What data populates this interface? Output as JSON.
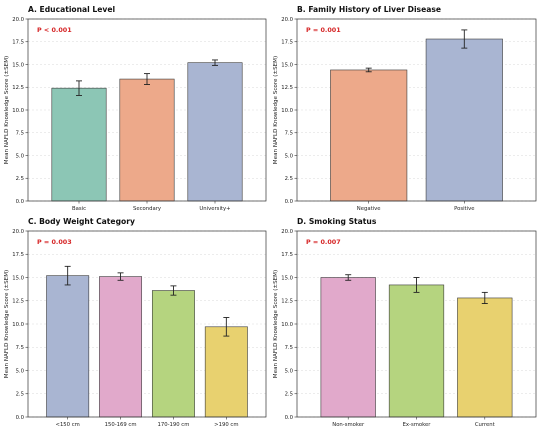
{
  "chart_data": [
    {
      "type": "bar",
      "title": "A. Educational Level",
      "annotation": "P < 0.001",
      "ylabel": "Mean NAFLD Knowledge Score (±SEM)",
      "ylim": [
        0,
        20
      ],
      "yticks": [
        "0.0",
        "2.5",
        "5.0",
        "7.5",
        "10.0",
        "12.5",
        "15.0",
        "17.5",
        "20.0"
      ],
      "categories": [
        "Basic",
        "Secondary",
        "University+"
      ],
      "values": [
        12.4,
        13.4,
        15.2
      ],
      "errors": [
        0.8,
        0.6,
        0.3
      ],
      "colors": [
        "#8cc6b5",
        "#eda98a",
        "#a9b5d2"
      ]
    },
    {
      "type": "bar",
      "title": "B. Family History of Liver Disease",
      "annotation": "P = 0.001",
      "ylabel": "Mean NAFLD Knowledge Score (±SEM)",
      "ylim": [
        0,
        20
      ],
      "yticks": [
        "0.0",
        "2.5",
        "5.0",
        "7.5",
        "10.0",
        "12.5",
        "15.0",
        "17.5",
        "20.0"
      ],
      "categories": [
        "Negative",
        "Positive"
      ],
      "values": [
        14.4,
        17.8
      ],
      "errors": [
        0.2,
        1.0
      ],
      "colors": [
        "#eda98a",
        "#a9b5d2"
      ]
    },
    {
      "type": "bar",
      "title": "C. Body Weight Category",
      "annotation": "P = 0.003",
      "ylabel": "Mean NAFLD Knowledge Score (±SEM)",
      "ylim": [
        0,
        20
      ],
      "yticks": [
        "0.0",
        "2.5",
        "5.0",
        "7.5",
        "10.0",
        "12.5",
        "15.0",
        "17.5",
        "20.0"
      ],
      "categories": [
        "<150 cm",
        "150-169 cm",
        "170-190 cm",
        ">190 cm"
      ],
      "values": [
        15.2,
        15.1,
        13.6,
        9.7
      ],
      "errors": [
        1.0,
        0.4,
        0.5,
        1.0
      ],
      "colors": [
        "#a9b5d2",
        "#e1a9cb",
        "#b5d47f",
        "#e8d16f"
      ]
    },
    {
      "type": "bar",
      "title": "D. Smoking Status",
      "annotation": "P = 0.007",
      "ylabel": "Mean NAFLD Knowledge Score (±SEM)",
      "ylim": [
        0,
        20
      ],
      "yticks": [
        "0.0",
        "2.5",
        "5.0",
        "7.5",
        "10.0",
        "12.5",
        "15.0",
        "17.5",
        "20.0"
      ],
      "categories": [
        "Non-smoker",
        "Ex-smoker",
        "Current"
      ],
      "values": [
        15.0,
        14.2,
        12.8
      ],
      "errors": [
        0.3,
        0.8,
        0.6
      ],
      "colors": [
        "#e1a9cb",
        "#b5d47f",
        "#e8d16f"
      ]
    }
  ]
}
